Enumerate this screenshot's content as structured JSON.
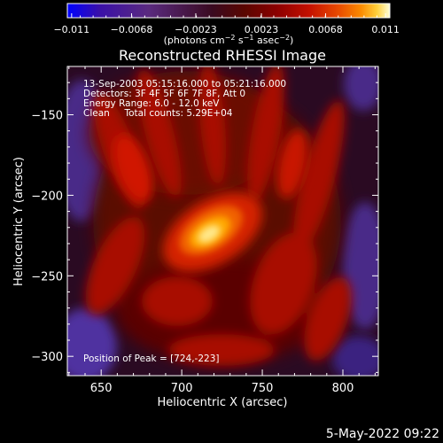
{
  "chart_data": {
    "type": "heatmap",
    "title": "Reconstructed RHESSI Image",
    "xlabel": "Heliocentric X (arcsec)",
    "ylabel": "Heliocentric Y (arcsec)",
    "xlim": [
      629,
      822
    ],
    "ylim": [
      -312,
      -120
    ],
    "x_ticks": [
      650,
      700,
      750,
      800
    ],
    "y_ticks": [
      -150,
      -200,
      -250,
      -300
    ],
    "colorbar": {
      "ticks": [
        "-0.011",
        "-0.0068",
        "-0.0023",
        "0.0023",
        "0.0068",
        "0.011"
      ],
      "range": [
        -0.0113,
        0.0113
      ],
      "label_parts": [
        "(photons cm",
        "-2",
        " s",
        "-1",
        " asec",
        "-2",
        ")"
      ],
      "colormap": [
        "#0000ff",
        "#3a10a8",
        "#5a2a80",
        "#3a0a20",
        "#5a0600",
        "#8c0000",
        "#c41000",
        "#e84a00",
        "#fa8a00",
        "#ffcf3a",
        "#ffffd8"
      ]
    },
    "annotations": [
      "13-Sep-2003 05:15:16.000 to 05:21:16.000",
      "Detectors: 3F 4F 5F 6F 7F 8F, Att 0",
      "Energy Range: 6.0 - 12.0 keV",
      "Clean     Total counts: 5.29E+04"
    ],
    "peak_label": "Position of Peak = [724,-223]",
    "peak": [
      724,
      -223
    ],
    "timestamp": "5-May-2022 09:22"
  }
}
